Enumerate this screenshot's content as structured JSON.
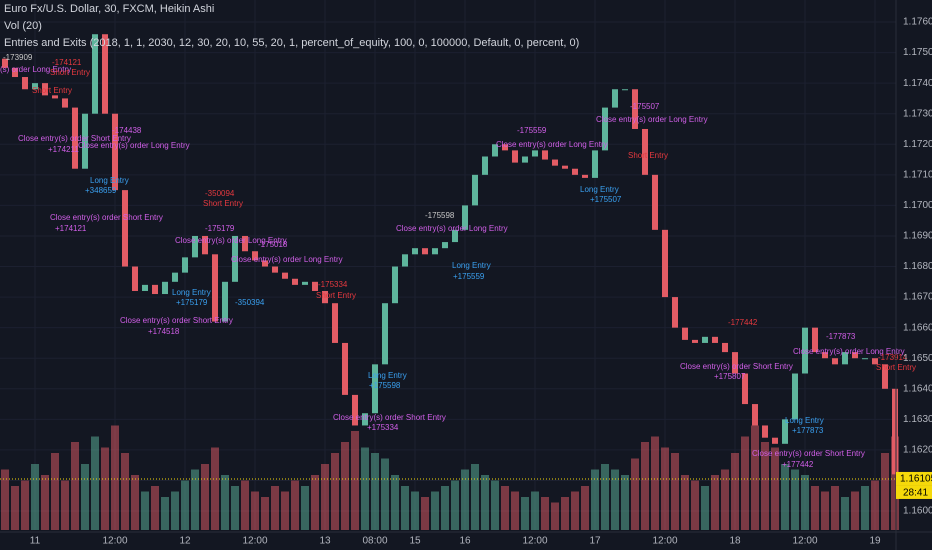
{
  "chart_data": {
    "type": "candlestick",
    "title": "Euro Fx/U.S. Dollar, 30, FXCM, Heikin Ashi",
    "volume_title": "Vol (20)",
    "strategy_title": "Entries and Exits (2018, 1, 1, 2030, 12, 30, 20, 10, 55, 20, 1, percent_of_equity, 100, 0, 100000, Default, 0, percent, 0)",
    "up_color": "#5eb59c",
    "down_color": "#e35c65",
    "open": [
      1.1748,
      1.1745,
      1.1742,
      1.1738,
      1.174,
      1.1736,
      1.1735,
      1.1732,
      1.1712,
      1.173,
      1.1756,
      1.173,
      1.1705,
      1.168,
      1.1672,
      1.1674,
      1.1671,
      1.1675,
      1.1678,
      1.1683,
      1.169,
      1.1684,
      1.1662,
      1.1675,
      1.169,
      1.1685,
      1.1682,
      1.168,
      1.1678,
      1.1676,
      1.1674,
      1.1675,
      1.1672,
      1.1668,
      1.1655,
      1.1638,
      1.1628,
      1.1632,
      1.1648,
      1.1668,
      1.168,
      1.1684,
      1.1686,
      1.1684,
      1.1686,
      1.1688,
      1.1692,
      1.17,
      1.171,
      1.1716,
      1.172,
      1.1718,
      1.1714,
      1.1716,
      1.1718,
      1.1715,
      1.1713,
      1.1712,
      1.171,
      1.1709,
      1.1718,
      1.1732,
      1.1738,
      1.1738,
      1.1725,
      1.171,
      1.1692,
      1.167,
      1.166,
      1.1656,
      1.1655,
      1.1657,
      1.1655,
      1.1652,
      1.1645,
      1.1635,
      1.1628,
      1.1624,
      1.1622,
      1.163,
      1.1645,
      1.166,
      1.1652,
      1.165,
      1.1648,
      1.1652,
      1.165,
      1.165,
      1.1648,
      1.164
    ],
    "close": [
      1.1745,
      1.1742,
      1.1738,
      1.174,
      1.1736,
      1.1735,
      1.1732,
      1.1712,
      1.173,
      1.1756,
      1.173,
      1.1705,
      1.168,
      1.1672,
      1.1674,
      1.1671,
      1.1675,
      1.1678,
      1.1683,
      1.169,
      1.1684,
      1.1662,
      1.1675,
      1.169,
      1.1685,
      1.1682,
      1.168,
      1.1678,
      1.1676,
      1.1674,
      1.1675,
      1.1672,
      1.1668,
      1.1655,
      1.1638,
      1.1628,
      1.1632,
      1.1648,
      1.1668,
      1.168,
      1.1684,
      1.1686,
      1.1684,
      1.1686,
      1.1688,
      1.1692,
      1.17,
      1.171,
      1.1716,
      1.172,
      1.1718,
      1.1714,
      1.1716,
      1.1718,
      1.1715,
      1.1713,
      1.1712,
      1.171,
      1.1709,
      1.1718,
      1.1732,
      1.1738,
      1.1738,
      1.1725,
      1.171,
      1.1692,
      1.167,
      1.166,
      1.1656,
      1.1655,
      1.1657,
      1.1655,
      1.1652,
      1.1645,
      1.1635,
      1.1628,
      1.1624,
      1.1622,
      1.163,
      1.1645,
      1.166,
      1.1652,
      1.165,
      1.1648,
      1.1652,
      1.165,
      1.165,
      1.1648,
      1.164,
      1.1612
    ],
    "volume": [
      55,
      40,
      45,
      60,
      50,
      70,
      45,
      80,
      60,
      85,
      75,
      95,
      70,
      50,
      35,
      40,
      30,
      35,
      45,
      55,
      60,
      75,
      50,
      40,
      45,
      35,
      30,
      40,
      35,
      45,
      40,
      50,
      60,
      70,
      80,
      90,
      75,
      70,
      65,
      50,
      40,
      35,
      30,
      35,
      40,
      45,
      55,
      60,
      50,
      45,
      40,
      35,
      30,
      35,
      30,
      25,
      30,
      35,
      40,
      55,
      60,
      55,
      50,
      65,
      80,
      85,
      75,
      70,
      50,
      45,
      40,
      50,
      55,
      70,
      85,
      95,
      80,
      75,
      60,
      55,
      50,
      40,
      35,
      40,
      30,
      35,
      40,
      45,
      70,
      85
    ],
    "volume_ylim": [
      0,
      100
    ],
    "ylim": [
      1.15938,
      1.17672
    ],
    "yticks": [
      {
        "value": 1.16,
        "label": "1.16000"
      },
      {
        "value": 1.161,
        "label": "1.16100"
      },
      {
        "value": 1.162,
        "label": "1.16200"
      },
      {
        "value": 1.163,
        "label": "1.16300"
      },
      {
        "value": 1.164,
        "label": "1.16400"
      },
      {
        "value": 1.165,
        "label": "1.16500"
      },
      {
        "value": 1.166,
        "label": "1.16600"
      },
      {
        "value": 1.167,
        "label": "1.16700"
      },
      {
        "value": 1.168,
        "label": "1.16800"
      },
      {
        "value": 1.169,
        "label": "1.16900"
      },
      {
        "value": 1.17,
        "label": "1.17000"
      },
      {
        "value": 1.171,
        "label": "1.17100"
      },
      {
        "value": 1.172,
        "label": "1.17200"
      },
      {
        "value": 1.173,
        "label": "1.17300"
      },
      {
        "value": 1.174,
        "label": "1.17400"
      },
      {
        "value": 1.175,
        "label": "1.17500"
      },
      {
        "value": 1.176,
        "label": "1.17600"
      }
    ],
    "xticks": [
      {
        "value": 3,
        "label": "11"
      },
      {
        "value": 11,
        "label": "12:00"
      },
      {
        "value": 18,
        "label": "12"
      },
      {
        "value": 25,
        "label": "12:00"
      },
      {
        "value": 32,
        "label": "13"
      },
      {
        "value": 37,
        "label": "08:00"
      },
      {
        "value": 41,
        "label": "15"
      },
      {
        "value": 46,
        "label": "16"
      },
      {
        "value": 53,
        "label": "12:00"
      },
      {
        "value": 59,
        "label": "17"
      },
      {
        "value": 66,
        "label": "12:00"
      },
      {
        "value": 73,
        "label": "18"
      },
      {
        "value": 80,
        "label": "12:00"
      },
      {
        "value": 87,
        "label": "19"
      }
    ],
    "grid": true,
    "last_price": {
      "value": 1.16105,
      "label": "1.16105"
    },
    "countdown": "28:41"
  },
  "annotations": [
    "-173909",
    "(s) order Long Entry",
    "-174121",
    "Short Entry",
    "Short Entry",
    "Close entry(s) order Short Entry",
    "+174211",
    "-174438",
    "Close entry(s) order Long Entry",
    "Long Entry",
    "+348659",
    "Close entry(s) order Short Entry",
    "+174121",
    "-350094",
    "Short Entry",
    "-175179",
    "Close entry(s) order Long Entry",
    "-175018",
    "Close entry(s) order Long Entry",
    "Long Entry",
    "+175179",
    "-350394",
    "Close entry(s) order Short Entry",
    "+174518",
    "-175334",
    "Short Entry",
    "-175598",
    "Close entry(s) order Long Entry",
    "Long Entry",
    "+175559",
    "Long Entry",
    "+175598",
    "Close entry(s) order Short Entry",
    "+175334",
    "-175559",
    "Close entry(s) order Long Entry",
    "-175507",
    "Close entry(s) order Long Entry",
    "Long Entry",
    "+175507",
    "Short Entry",
    "-177442",
    "Close entry(s) order Short Entry",
    "+175807",
    "-177873",
    "Close entry(s) order Long Entry",
    "Long Entry",
    "+177873",
    "Close entry(s) order Short Entry",
    "+177442",
    "-173914",
    "Short Entry"
  ]
}
